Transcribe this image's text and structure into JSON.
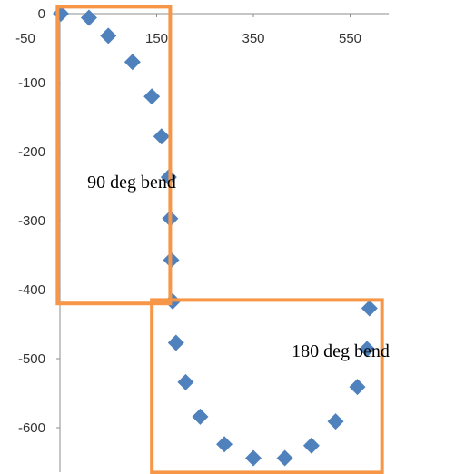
{
  "chart_data": {
    "type": "scatter",
    "title": "",
    "xlabel": "",
    "ylabel": "",
    "xlim": [
      -50,
      630
    ],
    "ylim": [
      -670,
      0
    ],
    "x_ticks": [
      "-50",
      "150",
      "350",
      "550"
    ],
    "y_ticks": [
      "0",
      "-100",
      "-200",
      "-300",
      "-400",
      "-500",
      "-600"
    ],
    "grid": false,
    "legend": "none",
    "marker": "diamond",
    "series": [
      {
        "color": "#4f81bd",
        "points": [
          {
            "x": -48,
            "y": 0
          },
          {
            "x": 10,
            "y": -6
          },
          {
            "x": 50,
            "y": -32
          },
          {
            "x": 100,
            "y": -70
          },
          {
            "x": 140,
            "y": -120
          },
          {
            "x": 160,
            "y": -178
          },
          {
            "x": 175,
            "y": -237
          },
          {
            "x": 178,
            "y": -297
          },
          {
            "x": 180,
            "y": -357
          },
          {
            "x": 183,
            "y": -417
          },
          {
            "x": 190,
            "y": -477
          },
          {
            "x": 210,
            "y": -534
          },
          {
            "x": 240,
            "y": -584
          },
          {
            "x": 290,
            "y": -624
          },
          {
            "x": 350,
            "y": -644
          },
          {
            "x": 415,
            "y": -644
          },
          {
            "x": 470,
            "y": -626
          },
          {
            "x": 520,
            "y": -591
          },
          {
            "x": 565,
            "y": -541
          },
          {
            "x": 585,
            "y": -486
          },
          {
            "x": 590,
            "y": -427
          }
        ]
      }
    ],
    "annotations": [
      {
        "id": "90-deg",
        "label": "90 deg bend",
        "color": "#f79646",
        "region": {
          "x": [
            -55,
            178
          ],
          "y": [
            -420,
            10
          ]
        }
      },
      {
        "id": "180-deg",
        "label": "180 deg bend",
        "color": "#f79646",
        "region": {
          "x": [
            140,
            616
          ],
          "y": [
            -665,
            -415
          ]
        }
      }
    ]
  }
}
